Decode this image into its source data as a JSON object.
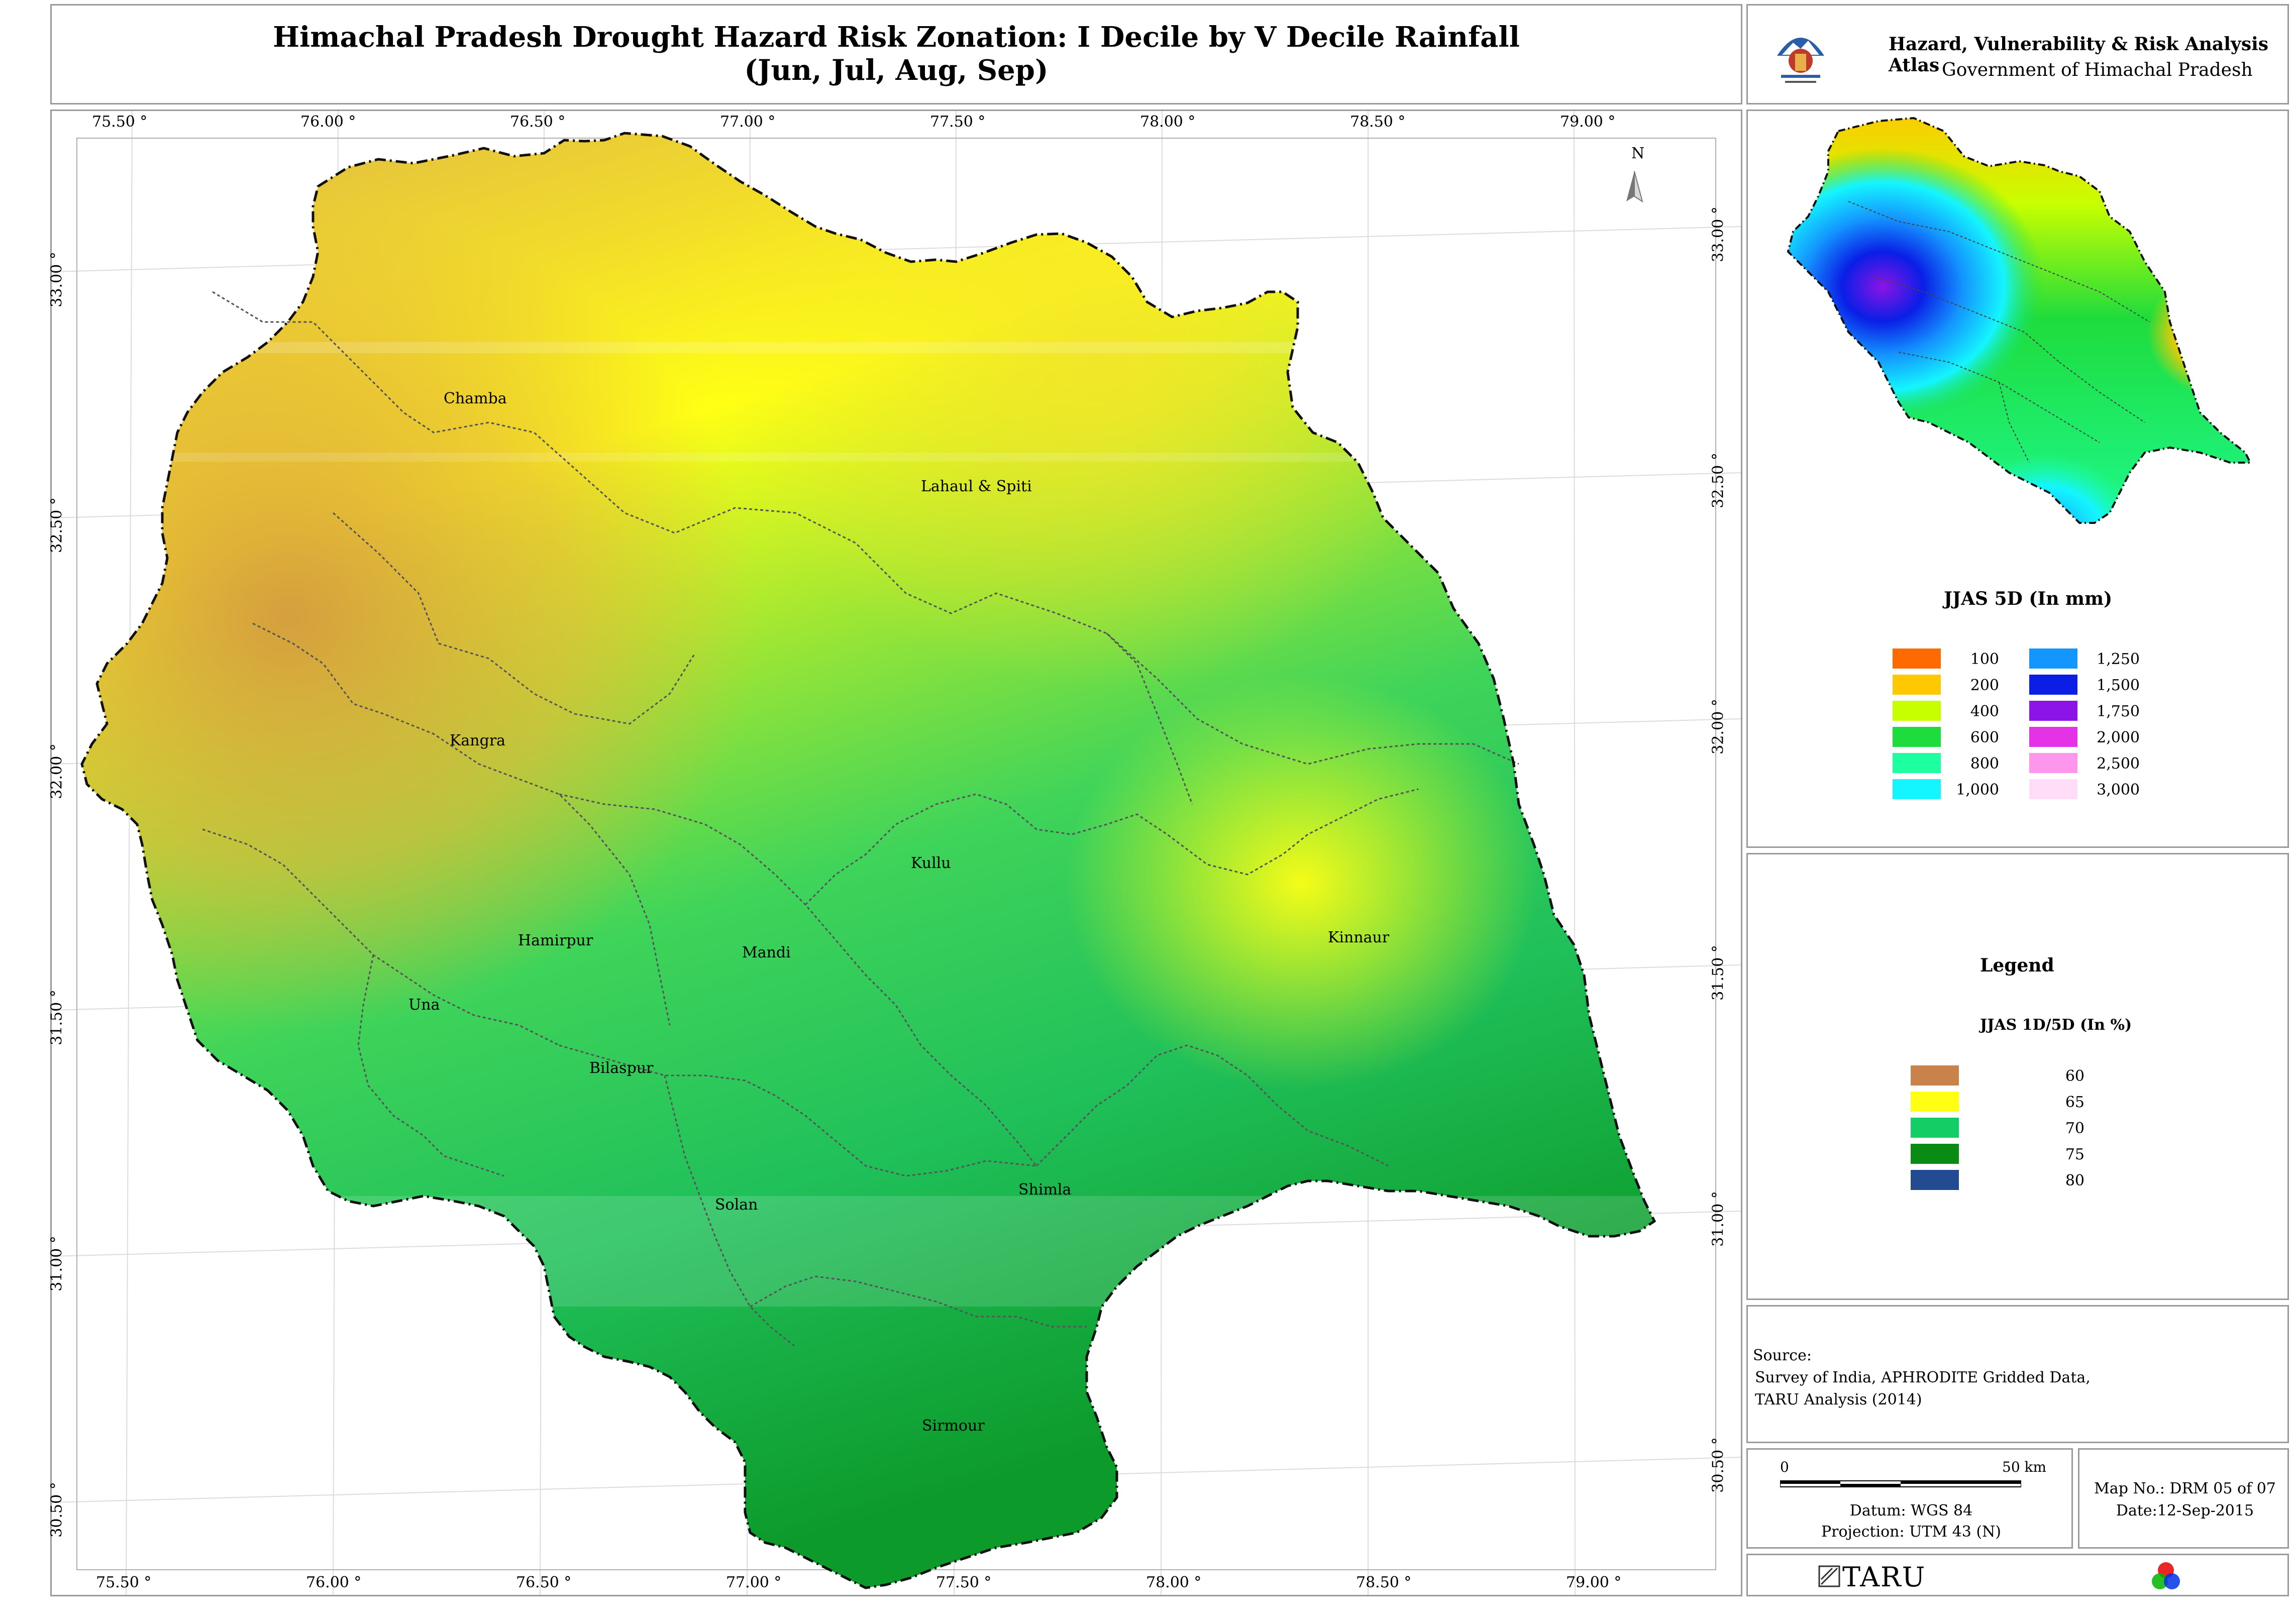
{
  "title": {
    "line1": "Himachal Pradesh Drought Hazard Risk Zonation: I Decile by V Decile Rainfall",
    "line2": "(Jun, Jul, Aug, Sep)"
  },
  "header": {
    "atlas_title": "Hazard, Vulnerability & Risk Analysis Atlas",
    "government": "Government of Himachal Pradesh"
  },
  "map": {
    "top_ticks": [
      "75.50 °",
      "76.00 °",
      "76.50 °",
      "77.00 °",
      "77.50 °",
      "78.00 °",
      "78.50 °",
      "79.00 °"
    ],
    "bottom_ticks": [
      "75.50 °",
      "76.00 °",
      "76.50 °",
      "77.00 °",
      "77.50 °",
      "78.00 °",
      "78.50 °",
      "79.00 °"
    ],
    "left_ticks": [
      "33.00 °",
      "32.50 °",
      "32.00 °",
      "31.50 °",
      "31.00 °",
      "30.50 °"
    ],
    "right_ticks": [
      "33.00 °",
      "32.50 °",
      "32.00 °",
      "31.50 °",
      "31.00 °",
      "30.50 °"
    ],
    "north_label": "N",
    "districts": [
      "Chamba",
      "Lahaul & Spiti",
      "Kangra",
      "Kullu",
      "Hamirpur",
      "Mandi",
      "Kinnaur",
      "Una",
      "Bilaspur",
      "Solan",
      "Shimla",
      "Sirmour"
    ]
  },
  "inset": {
    "title": "JJAS 5D (In mm)",
    "classes": [
      {
        "label": "100",
        "color": "#ff6a00"
      },
      {
        "label": "200",
        "color": "#ffc800"
      },
      {
        "label": "400",
        "color": "#c8ff00"
      },
      {
        "label": "600",
        "color": "#1edc3c"
      },
      {
        "label": "800",
        "color": "#1effa0"
      },
      {
        "label": "1,000",
        "color": "#14f5ff"
      },
      {
        "label": "1,250",
        "color": "#1496ff"
      },
      {
        "label": "1,500",
        "color": "#0a1ee6"
      },
      {
        "label": "1,750",
        "color": "#8c14e6"
      },
      {
        "label": "2,000",
        "color": "#e632e6"
      },
      {
        "label": "2,500",
        "color": "#ff96ee"
      },
      {
        "label": "3,000",
        "color": "#ffdcf8"
      }
    ]
  },
  "legend": {
    "title": "Legend",
    "subtitle": "JJAS 1D/5D (In %)",
    "classes": [
      {
        "label": "60",
        "color": "#c8824a"
      },
      {
        "label": "65",
        "color": "#ffff14"
      },
      {
        "label": "70",
        "color": "#14cd64"
      },
      {
        "label": "75",
        "color": "#0a8c14"
      },
      {
        "label": "80",
        "color": "#234b91"
      }
    ]
  },
  "source": {
    "heading": "Source:",
    "lines": [
      "Survey of India, APHRODITE Gridded Data,",
      "TARU Analysis (2014)"
    ]
  },
  "scalebar": {
    "start": "0",
    "end": "50 km",
    "datum": "Datum: WGS 84",
    "projection": "Projection: UTM 43 (N)"
  },
  "mapinfo": {
    "map_no": "Map No.: DRM 05 of 07",
    "date": "Date:12-Sep-2015"
  },
  "logo": {
    "text": "TARU"
  }
}
